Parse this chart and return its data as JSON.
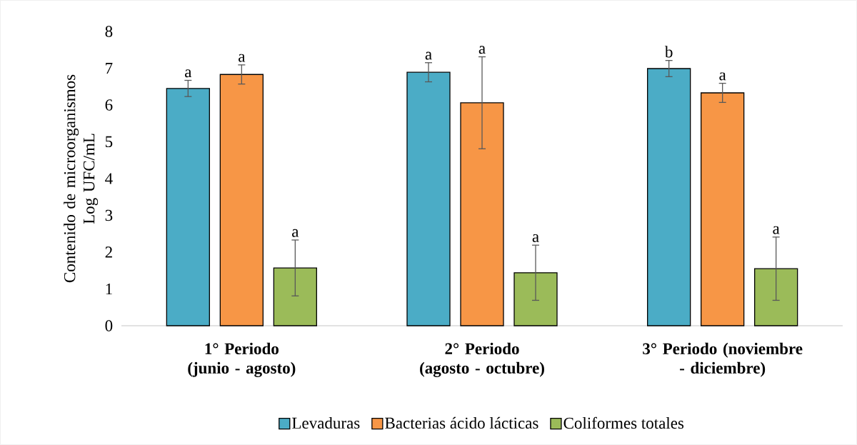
{
  "chart_data": {
    "type": "bar",
    "ylabel": "Contenido de microorganismos Log UFC/mL",
    "categories": [
      "1° Periodo (junio - agosto)",
      "2° Periodo (agosto - octubre)",
      "3° Periodo (noviembre - diciembre)"
    ],
    "series": [
      {
        "name": "Levaduras",
        "color": "#4bacc6",
        "values": [
          6.45,
          6.89,
          6.99
        ],
        "errors": [
          0.22,
          0.26,
          0.22
        ]
      },
      {
        "name": "Bacterias ácido lácticas",
        "color": "#f79646",
        "values": [
          6.83,
          6.06,
          6.33
        ],
        "errors": [
          0.26,
          1.25,
          0.26
        ]
      },
      {
        "name": "Coliformes totales",
        "color": "#9bbb59",
        "values": [
          1.57,
          1.44,
          1.55
        ],
        "errors": [
          0.76,
          0.75,
          0.86
        ]
      }
    ],
    "ylim": [
      0,
      8
    ],
    "yticks": [
      0,
      1,
      2,
      3,
      4,
      5,
      6,
      7,
      8
    ],
    "grid": false,
    "legend": "bottom",
    "annotations": [
      "a",
      "a",
      "a",
      "a",
      "a",
      "a",
      "b",
      "a",
      "a"
    ]
  }
}
